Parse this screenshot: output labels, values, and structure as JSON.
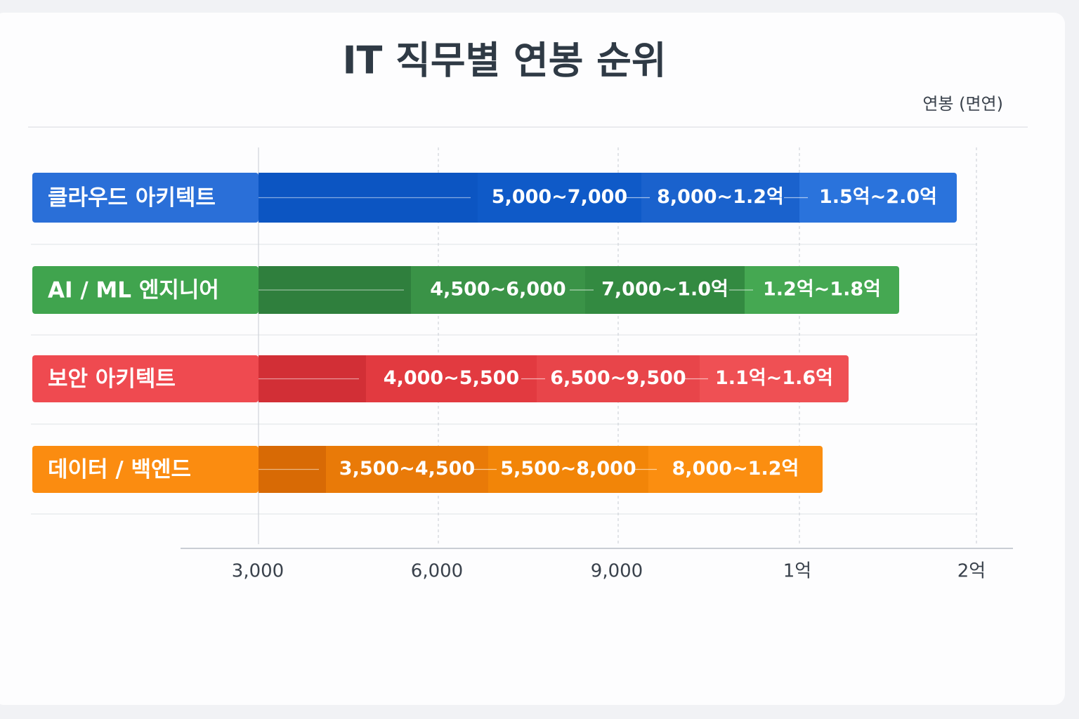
{
  "title": "IT 직무별 연봉 순위",
  "unit_label": "연봉 (면연)",
  "axis_ticks": [
    "3,000",
    "6,000",
    "9,000",
    "1억",
    "2억"
  ],
  "rows": [
    {
      "name": "클라우드 아키텍트",
      "ranges": [
        "5,000~7,000",
        "8,000~1.2억",
        "1.5억~2.0억"
      ]
    },
    {
      "name": "AI / ML 엔지니어",
      "ranges": [
        "4,500~6,000",
        "7,000~1.0억",
        "1.2억~1.8억"
      ]
    },
    {
      "name": "보안 아키텍트",
      "ranges": [
        "4,000~5,500",
        "6,500~9,500",
        "1.1억~1.6억"
      ]
    },
    {
      "name": "데이터 / 백엔드",
      "ranges": [
        "3,500~4,500",
        "5,500~8,000",
        "8,000~1.2억"
      ]
    }
  ]
}
